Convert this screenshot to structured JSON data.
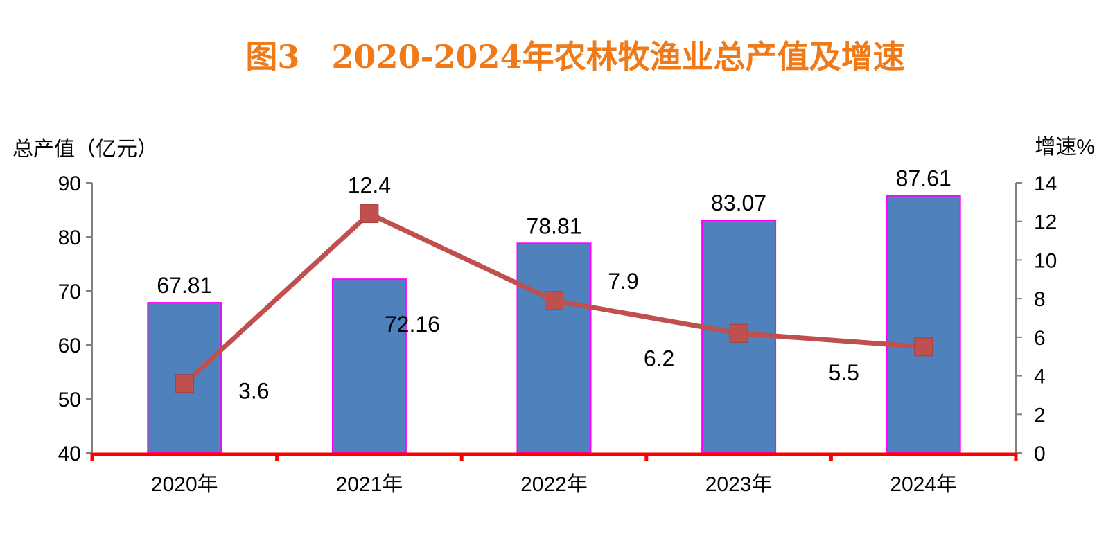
{
  "chart_data": {
    "type": "bar",
    "title": "图3　2020-2024年农林牧渔业总产值及增速",
    "ylabel_left": "总产值（亿元）",
    "ylabel_right": "增速%",
    "categories": [
      "2020年",
      "2021年",
      "2022年",
      "2023年",
      "2024年"
    ],
    "ylim_left": [
      40,
      90
    ],
    "ylim_right": [
      0,
      14
    ],
    "yticks_left": [
      "40",
      "50",
      "60",
      "70",
      "80",
      "90"
    ],
    "yticks_right": [
      "0",
      "2",
      "4",
      "6",
      "8",
      "10",
      "12",
      "14"
    ],
    "series": [
      {
        "name": "",
        "kind": "bar",
        "axis": "left",
        "values": [
          67.81,
          72.16,
          78.81,
          83.07,
          87.61
        ],
        "labels": [
          "67.81",
          "72.16",
          "78.81",
          "83.07",
          "87.61"
        ]
      },
      {
        "name": "",
        "kind": "line",
        "axis": "right",
        "values": [
          3.6,
          12.4,
          7.9,
          6.2,
          5.5
        ],
        "labels": [
          "3.6",
          "12.4",
          "7.9",
          "6.2",
          "5.5"
        ]
      }
    ],
    "grid": false,
    "colors": {
      "title": "#f07a18",
      "bar_fill": "#4f81bd",
      "bar_stroke": "#ff00ff",
      "line": "#c0504d",
      "marker": "#c0504d",
      "x_axis": "#ff0000",
      "y_axis": "#808080",
      "text": "#000000"
    }
  }
}
